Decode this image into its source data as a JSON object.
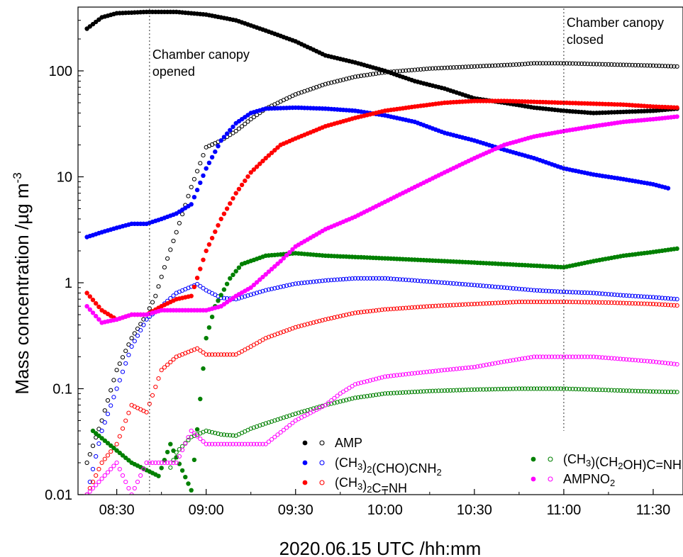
{
  "chart_data": {
    "type": "scatter",
    "xlabel": "2020.06.15 UTC /hh:mm",
    "ylabel_main": "Mass concentration /µg m",
    "ylabel_sup": "-3",
    "yscale": "log",
    "xlim": [
      "08:17",
      "11:40"
    ],
    "ylim": [
      0.01,
      400
    ],
    "x_ticks": [
      "08:30",
      "09:00",
      "09:30",
      "10:00",
      "10:30",
      "11:00",
      "11:30"
    ],
    "y_ticks": [
      {
        "value": 0.01,
        "label": "0.01"
      },
      {
        "value": 0.1,
        "label": "0.1"
      },
      {
        "value": 1,
        "label": "1"
      },
      {
        "value": 10,
        "label": "10"
      },
      {
        "value": 100,
        "label": "100"
      }
    ],
    "grid": false,
    "legend_position": "bottom-right",
    "annotations": [
      {
        "time": "08:41",
        "lines": [
          "Chamber canopy",
          "opened"
        ]
      },
      {
        "time": "11:00",
        "lines": [
          "Chamber canopy",
          "closed"
        ]
      }
    ],
    "colors": {
      "amp": "#000000",
      "dimethyl_formyl": "#0000ff",
      "imine": "#ff0000",
      "hydroxy_imine": "#008000",
      "ampno2": "#ff00ff"
    },
    "species": [
      {
        "key": "amp",
        "filled_label": "",
        "open_label": "AMP",
        "open_sub": [],
        "filled_sub": []
      },
      {
        "key": "dimethyl_formyl",
        "filled_label": "",
        "open_label": "(CH3)2(CHO)CNH2",
        "open_sub": [
          {
            "t": "(CH"
          },
          {
            "s": "3"
          },
          {
            "t": ")"
          },
          {
            "s": "2"
          },
          {
            "t": "(CHO)CNH"
          },
          {
            "s": "2"
          }
        ]
      },
      {
        "key": "imine",
        "filled_label": "",
        "open_label": "(CH3)2C=NH",
        "open_sub": [
          {
            "t": "(CH"
          },
          {
            "s": "3"
          },
          {
            "t": ")"
          },
          {
            "s": "2"
          },
          {
            "t": "C=NH"
          }
        ]
      },
      {
        "key": "hydroxy_imine",
        "filled_label": "",
        "open_label": "(CH3)(CH2OH)C=NH",
        "open_sub": [
          {
            "t": "(CH"
          },
          {
            "s": "3"
          },
          {
            "t": ")(CH"
          },
          {
            "s": "2"
          },
          {
            "t": "OH)C=NH"
          }
        ]
      },
      {
        "key": "ampno2",
        "filled_label": "",
        "open_label": "AMPNO2",
        "open_sub": [
          {
            "t": "AMPNO"
          },
          {
            "s": "2"
          }
        ]
      }
    ],
    "series": [
      {
        "name": "AMP (filled)",
        "color": "#000000",
        "filled": true,
        "points": [
          [
            "08:20",
            250
          ],
          [
            "08:25",
            320
          ],
          [
            "08:30",
            350
          ],
          [
            "08:40",
            360
          ],
          [
            "08:50",
            360
          ],
          [
            "09:00",
            340
          ],
          [
            "09:10",
            300
          ],
          [
            "09:20",
            240
          ],
          [
            "09:30",
            190
          ],
          [
            "09:40",
            140
          ],
          [
            "09:50",
            120
          ],
          [
            "10:00",
            100
          ],
          [
            "10:10",
            80
          ],
          [
            "10:20",
            68
          ],
          [
            "10:30",
            55
          ],
          [
            "10:40",
            50
          ],
          [
            "10:50",
            45
          ],
          [
            "11:00",
            42
          ],
          [
            "11:10",
            40
          ],
          [
            "11:20",
            41
          ],
          [
            "11:30",
            42
          ],
          [
            "11:38",
            44
          ]
        ]
      },
      {
        "name": "AMP (open)",
        "color": "#000000",
        "filled": false,
        "points": [
          [
            "08:20",
            0.02
          ],
          [
            "08:25",
            0.05
          ],
          [
            "08:30",
            0.15
          ],
          [
            "08:35",
            0.3
          ],
          [
            "08:40",
            0.5
          ],
          [
            "08:43",
            0.75
          ],
          [
            "08:46",
            1.4
          ],
          [
            "08:50",
            3
          ],
          [
            "08:55",
            8
          ],
          [
            "09:00",
            19
          ],
          [
            "09:05",
            22
          ],
          [
            "09:10",
            27
          ],
          [
            "09:15",
            35
          ],
          [
            "09:20",
            44
          ],
          [
            "09:30",
            60
          ],
          [
            "09:40",
            75
          ],
          [
            "09:50",
            88
          ],
          [
            "10:00",
            97
          ],
          [
            "10:15",
            105
          ],
          [
            "10:30",
            110
          ],
          [
            "10:45",
            115
          ],
          [
            "10:50",
            118
          ],
          [
            "11:00",
            118
          ],
          [
            "11:15",
            115
          ],
          [
            "11:30",
            112
          ],
          [
            "11:38",
            110
          ]
        ]
      },
      {
        "name": "(CH3)2(CHO)CNH2 (filled)",
        "color": "#0000ff",
        "filled": true,
        "points": [
          [
            "08:20",
            2.7
          ],
          [
            "08:25",
            3.0
          ],
          [
            "08:30",
            3.3
          ],
          [
            "08:35",
            3.6
          ],
          [
            "08:40",
            3.6
          ],
          [
            "08:45",
            4.0
          ],
          [
            "08:50",
            4.5
          ],
          [
            "08:55",
            5.5
          ],
          [
            "09:00",
            12
          ],
          [
            "09:05",
            22
          ],
          [
            "09:10",
            32
          ],
          [
            "09:15",
            40
          ],
          [
            "09:20",
            44
          ],
          [
            "09:30",
            45
          ],
          [
            "09:40",
            44
          ],
          [
            "09:50",
            42
          ],
          [
            "10:00",
            38
          ],
          [
            "10:10",
            33
          ],
          [
            "10:20",
            26
          ],
          [
            "10:30",
            22
          ],
          [
            "10:40",
            18
          ],
          [
            "10:50",
            15
          ],
          [
            "11:00",
            12
          ],
          [
            "11:10",
            10.5
          ],
          [
            "11:20",
            9.5
          ],
          [
            "11:30",
            8.5
          ],
          [
            "11:35",
            7.8
          ]
        ]
      },
      {
        "name": "(CH3)2(CHO)CNH2 (open)",
        "color": "#0000ff",
        "filled": false,
        "points": [
          [
            "08:20",
            0.01
          ],
          [
            "08:25",
            0.04
          ],
          [
            "08:30",
            0.1
          ],
          [
            "08:35",
            0.25
          ],
          [
            "08:40",
            0.45
          ],
          [
            "08:45",
            0.6
          ],
          [
            "08:50",
            0.8
          ],
          [
            "08:57",
            0.97
          ],
          [
            "09:00",
            0.85
          ],
          [
            "09:05",
            0.72
          ],
          [
            "09:10",
            0.7
          ],
          [
            "09:20",
            0.85
          ],
          [
            "09:30",
            0.98
          ],
          [
            "09:40",
            1.05
          ],
          [
            "09:50",
            1.1
          ],
          [
            "10:00",
            1.1
          ],
          [
            "10:10",
            1.05
          ],
          [
            "10:20",
            1.0
          ],
          [
            "10:30",
            0.95
          ],
          [
            "10:40",
            0.9
          ],
          [
            "10:50",
            0.85
          ],
          [
            "11:00",
            0.82
          ],
          [
            "11:10",
            0.8
          ],
          [
            "11:20",
            0.76
          ],
          [
            "11:30",
            0.73
          ],
          [
            "11:38",
            0.7
          ]
        ]
      },
      {
        "name": "(CH3)2C=NH (filled)",
        "color": "#ff0000",
        "filled": true,
        "points": [
          [
            "08:20",
            0.8
          ],
          [
            "08:25",
            0.55
          ],
          [
            "08:30",
            0.45
          ],
          [
            "08:35",
            0.5
          ],
          [
            "08:40",
            0.5
          ],
          [
            "08:45",
            0.6
          ],
          [
            "08:50",
            0.7
          ],
          [
            "08:55",
            0.75
          ],
          [
            "09:00",
            2
          ],
          [
            "09:05",
            4
          ],
          [
            "09:10",
            7
          ],
          [
            "09:15",
            11
          ],
          [
            "09:20",
            15
          ],
          [
            "09:25",
            20
          ],
          [
            "09:30",
            23
          ],
          [
            "09:40",
            30
          ],
          [
            "09:50",
            36
          ],
          [
            "10:00",
            42
          ],
          [
            "10:10",
            46
          ],
          [
            "10:20",
            50
          ],
          [
            "10:30",
            52
          ],
          [
            "10:40",
            52
          ],
          [
            "10:50",
            51
          ],
          [
            "11:00",
            50
          ],
          [
            "11:10",
            49
          ],
          [
            "11:20",
            48
          ],
          [
            "11:30",
            46
          ],
          [
            "11:38",
            45
          ]
        ]
      },
      {
        "name": "(CH3)2C=NH (open)",
        "color": "#ff0000",
        "filled": false,
        "points": [
          [
            "08:20",
            0.01
          ],
          [
            "08:25",
            0.02
          ],
          [
            "08:30",
            0.03
          ],
          [
            "08:35",
            0.07
          ],
          [
            "08:40",
            0.06
          ],
          [
            "08:45",
            0.15
          ],
          [
            "08:50",
            0.2
          ],
          [
            "08:57",
            0.24
          ],
          [
            "09:00",
            0.21
          ],
          [
            "09:10",
            0.21
          ],
          [
            "09:15",
            0.25
          ],
          [
            "09:20",
            0.3
          ],
          [
            "09:30",
            0.38
          ],
          [
            "09:40",
            0.45
          ],
          [
            "09:50",
            0.52
          ],
          [
            "10:00",
            0.56
          ],
          [
            "10:15",
            0.6
          ],
          [
            "10:30",
            0.63
          ],
          [
            "10:45",
            0.66
          ],
          [
            "11:00",
            0.66
          ],
          [
            "11:15",
            0.65
          ],
          [
            "11:30",
            0.63
          ],
          [
            "11:38",
            0.61
          ]
        ]
      },
      {
        "name": "(CH3)(CH2OH)C=NH (filled)",
        "color": "#008000",
        "filled": true,
        "points": [
          [
            "08:22",
            0.04
          ],
          [
            "08:35",
            0.02
          ],
          [
            "08:44",
            0.015
          ],
          [
            "08:48",
            0.03
          ],
          [
            "08:55",
            0.011
          ],
          [
            "09:00",
            0.3
          ],
          [
            "09:03",
            0.6
          ],
          [
            "09:08",
            1.1
          ],
          [
            "09:12",
            1.5
          ],
          [
            "09:20",
            1.8
          ],
          [
            "09:30",
            1.9
          ],
          [
            "09:40",
            1.8
          ],
          [
            "09:50",
            1.75
          ],
          [
            "10:00",
            1.7
          ],
          [
            "10:10",
            1.65
          ],
          [
            "10:20",
            1.6
          ],
          [
            "10:30",
            1.55
          ],
          [
            "10:40",
            1.5
          ],
          [
            "10:50",
            1.45
          ],
          [
            "11:00",
            1.4
          ],
          [
            "11:10",
            1.6
          ],
          [
            "11:20",
            1.8
          ],
          [
            "11:30",
            1.95
          ],
          [
            "11:38",
            2.1
          ]
        ]
      },
      {
        "name": "(CH3)(CH2OH)C=NH (open)",
        "color": "#008000",
        "filled": false,
        "points": [
          [
            "08:48",
            0.018
          ],
          [
            "08:50",
            0.025
          ],
          [
            "08:55",
            0.035
          ],
          [
            "09:00",
            0.04
          ],
          [
            "09:05",
            0.037
          ],
          [
            "09:10",
            0.036
          ],
          [
            "09:15",
            0.042
          ],
          [
            "09:20",
            0.047
          ],
          [
            "09:30",
            0.058
          ],
          [
            "09:40",
            0.07
          ],
          [
            "09:50",
            0.082
          ],
          [
            "10:00",
            0.09
          ],
          [
            "10:15",
            0.095
          ],
          [
            "10:30",
            0.098
          ],
          [
            "10:45",
            0.1
          ],
          [
            "11:00",
            0.1
          ],
          [
            "11:15",
            0.097
          ],
          [
            "11:30",
            0.094
          ],
          [
            "11:38",
            0.093
          ]
        ]
      },
      {
        "name": "AMPNO2 (filled)",
        "color": "#ff00ff",
        "filled": true,
        "points": [
          [
            "08:20",
            0.6
          ],
          [
            "08:25",
            0.42
          ],
          [
            "08:30",
            0.45
          ],
          [
            "08:35",
            0.5
          ],
          [
            "08:40",
            0.5
          ],
          [
            "08:45",
            0.55
          ],
          [
            "08:50",
            0.55
          ],
          [
            "08:55",
            0.55
          ],
          [
            "09:00",
            0.55
          ],
          [
            "09:05",
            0.6
          ],
          [
            "09:10",
            0.75
          ],
          [
            "09:15",
            0.9
          ],
          [
            "09:20",
            1.2
          ],
          [
            "09:25",
            1.6
          ],
          [
            "09:30",
            2.2
          ],
          [
            "09:40",
            3.2
          ],
          [
            "09:50",
            4.2
          ],
          [
            "10:00",
            5.8
          ],
          [
            "10:10",
            8
          ],
          [
            "10:20",
            11
          ],
          [
            "10:30",
            15
          ],
          [
            "10:40",
            20
          ],
          [
            "10:50",
            24
          ],
          [
            "11:00",
            27
          ],
          [
            "11:10",
            30
          ],
          [
            "11:20",
            33
          ],
          [
            "11:30",
            35
          ],
          [
            "11:38",
            37
          ]
        ]
      },
      {
        "name": "AMPNO2 (open)",
        "color": "#ff00ff",
        "filled": false,
        "points": [
          [
            "08:20",
            0.01
          ],
          [
            "08:30",
            0.02
          ],
          [
            "08:35",
            0.01
          ],
          [
            "08:40",
            0.02
          ],
          [
            "08:45",
            0.02
          ],
          [
            "08:50",
            0.02
          ],
          [
            "08:55",
            0.04
          ],
          [
            "09:00",
            0.03
          ],
          [
            "09:10",
            0.03
          ],
          [
            "09:20",
            0.03
          ],
          [
            "09:30",
            0.05
          ],
          [
            "09:40",
            0.07
          ],
          [
            "09:45",
            0.09
          ],
          [
            "09:50",
            0.11
          ],
          [
            "10:00",
            0.13
          ],
          [
            "10:10",
            0.14
          ],
          [
            "10:20",
            0.15
          ],
          [
            "10:30",
            0.16
          ],
          [
            "10:40",
            0.18
          ],
          [
            "10:50",
            0.2
          ],
          [
            "11:00",
            0.2
          ],
          [
            "11:10",
            0.2
          ],
          [
            "11:20",
            0.19
          ],
          [
            "11:30",
            0.18
          ],
          [
            "11:38",
            0.17
          ]
        ]
      }
    ]
  }
}
